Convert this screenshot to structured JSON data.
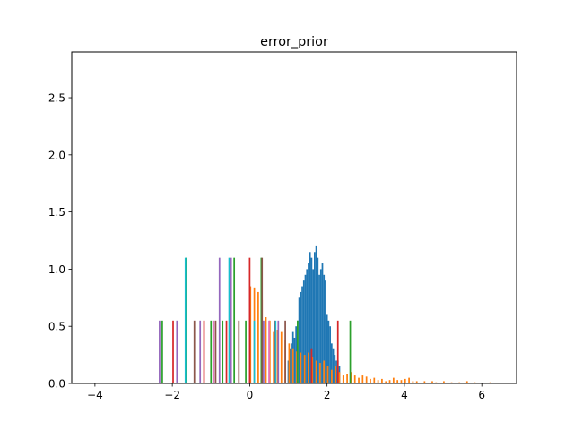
{
  "chart_data": {
    "type": "histogram",
    "title": "error_prior",
    "xlabel": "",
    "ylabel": "",
    "xlim": [
      -4.6,
      6.9
    ],
    "ylim": [
      0,
      2.9
    ],
    "xticks": [
      -4,
      -2,
      0,
      2,
      4,
      6
    ],
    "xtick_labels": [
      "−4",
      "−2",
      "0",
      "2",
      "4",
      "6"
    ],
    "yticks": [
      0.0,
      0.5,
      1.0,
      1.5,
      2.0,
      2.5
    ],
    "ytick_labels": [
      "0.0",
      "0.5",
      "1.0",
      "1.5",
      "2.0",
      "2.5"
    ],
    "grid": false,
    "legend": "none",
    "bar_width": 0.04,
    "series": [
      {
        "color": "#1f77b4",
        "bars": [
          {
            "x": 0.98,
            "h": 0.2
          },
          {
            "x": 1.02,
            "h": 0.3
          },
          {
            "x": 1.06,
            "h": 0.35
          },
          {
            "x": 1.1,
            "h": 0.45
          },
          {
            "x": 1.14,
            "h": 0.4
          },
          {
            "x": 1.18,
            "h": 0.5
          },
          {
            "x": 1.22,
            "h": 0.55
          },
          {
            "x": 1.26,
            "h": 0.75
          },
          {
            "x": 1.3,
            "h": 0.8
          },
          {
            "x": 1.34,
            "h": 0.85
          },
          {
            "x": 1.38,
            "h": 0.9
          },
          {
            "x": 1.42,
            "h": 0.95
          },
          {
            "x": 1.46,
            "h": 1.0
          },
          {
            "x": 1.5,
            "h": 1.05
          },
          {
            "x": 1.54,
            "h": 1.15
          },
          {
            "x": 1.58,
            "h": 1.1
          },
          {
            "x": 1.62,
            "h": 1.0
          },
          {
            "x": 1.66,
            "h": 1.15
          },
          {
            "x": 1.7,
            "h": 1.2
          },
          {
            "x": 1.74,
            "h": 1.1
          },
          {
            "x": 1.78,
            "h": 0.95
          },
          {
            "x": 1.82,
            "h": 1.0
          },
          {
            "x": 1.86,
            "h": 1.05
          },
          {
            "x": 1.9,
            "h": 0.95
          },
          {
            "x": 1.94,
            "h": 0.9
          },
          {
            "x": 1.98,
            "h": 0.6
          },
          {
            "x": 2.02,
            "h": 0.55
          },
          {
            "x": 2.06,
            "h": 0.5
          },
          {
            "x": 2.1,
            "h": 0.35
          },
          {
            "x": 2.14,
            "h": 0.3
          },
          {
            "x": 2.18,
            "h": 0.25
          },
          {
            "x": 2.22,
            "h": 0.2
          },
          {
            "x": 2.26,
            "h": 0.2
          },
          {
            "x": 2.3,
            "h": 0.15
          }
        ]
      },
      {
        "color": "#ff7f0e",
        "bars": [
          {
            "x": 0.0,
            "h": 0.85
          },
          {
            "x": 0.1,
            "h": 0.84
          },
          {
            "x": 0.2,
            "h": 0.8
          },
          {
            "x": 0.3,
            "h": 0.73
          },
          {
            "x": 0.4,
            "h": 0.58
          },
          {
            "x": 0.5,
            "h": 0.55
          },
          {
            "x": 0.6,
            "h": 0.45
          },
          {
            "x": 0.7,
            "h": 0.47
          },
          {
            "x": 0.8,
            "h": 0.45
          },
          {
            "x": 0.9,
            "h": 0.38
          },
          {
            "x": 1.0,
            "h": 0.35
          },
          {
            "x": 1.1,
            "h": 0.3
          },
          {
            "x": 1.2,
            "h": 0.28
          },
          {
            "x": 1.3,
            "h": 0.27
          },
          {
            "x": 1.4,
            "h": 0.25
          },
          {
            "x": 1.5,
            "h": 0.27
          },
          {
            "x": 1.6,
            "h": 0.23
          },
          {
            "x": 1.7,
            "h": 0.2
          },
          {
            "x": 1.8,
            "h": 0.18
          },
          {
            "x": 1.9,
            "h": 0.2
          },
          {
            "x": 2.0,
            "h": 0.15
          },
          {
            "x": 2.1,
            "h": 0.12
          },
          {
            "x": 2.2,
            "h": 0.15
          },
          {
            "x": 2.3,
            "h": 0.1
          },
          {
            "x": 2.4,
            "h": 0.07
          },
          {
            "x": 2.5,
            "h": 0.08
          },
          {
            "x": 2.6,
            "h": 0.1
          },
          {
            "x": 2.7,
            "h": 0.07
          },
          {
            "x": 2.8,
            "h": 0.05
          },
          {
            "x": 2.9,
            "h": 0.07
          },
          {
            "x": 3.0,
            "h": 0.06
          },
          {
            "x": 3.1,
            "h": 0.04
          },
          {
            "x": 3.2,
            "h": 0.05
          },
          {
            "x": 3.3,
            "h": 0.03
          },
          {
            "x": 3.4,
            "h": 0.04
          },
          {
            "x": 3.5,
            "h": 0.02
          },
          {
            "x": 3.6,
            "h": 0.03
          },
          {
            "x": 3.7,
            "h": 0.05
          },
          {
            "x": 3.8,
            "h": 0.03
          },
          {
            "x": 3.9,
            "h": 0.03
          },
          {
            "x": 4.0,
            "h": 0.04
          },
          {
            "x": 4.1,
            "h": 0.05
          },
          {
            "x": 4.2,
            "h": 0.02
          },
          {
            "x": 4.3,
            "h": 0.02
          },
          {
            "x": 4.5,
            "h": 0.02
          },
          {
            "x": 4.7,
            "h": 0.02
          },
          {
            "x": 4.8,
            "h": 0.01
          },
          {
            "x": 5.0,
            "h": 0.02
          },
          {
            "x": 5.2,
            "h": 0.01
          },
          {
            "x": 5.4,
            "h": 0.01
          },
          {
            "x": 5.6,
            "h": 0.02
          },
          {
            "x": 5.8,
            "h": 0.01
          },
          {
            "x": 6.2,
            "h": 0.01
          }
        ]
      },
      {
        "color": "#2ca02c",
        "bars": [
          {
            "x": -2.28,
            "h": 0.55
          },
          {
            "x": -1.66,
            "h": 1.1
          },
          {
            "x": -1.02,
            "h": 0.55
          },
          {
            "x": -0.72,
            "h": 0.55
          },
          {
            "x": -0.42,
            "h": 1.1
          },
          {
            "x": -0.12,
            "h": 0.55
          },
          {
            "x": 0.28,
            "h": 1.1
          },
          {
            "x": 1.22,
            "h": 0.55
          },
          {
            "x": 2.58,
            "h": 0.55
          }
        ]
      },
      {
        "color": "#d62728",
        "bars": [
          {
            "x": -2.0,
            "h": 0.55
          },
          {
            "x": -1.2,
            "h": 0.55
          },
          {
            "x": -0.62,
            "h": 0.55
          },
          {
            "x": -0.02,
            "h": 1.1
          },
          {
            "x": 0.62,
            "h": 0.55
          },
          {
            "x": 1.58,
            "h": 0.3
          },
          {
            "x": 2.26,
            "h": 0.55
          }
        ]
      },
      {
        "color": "#9467bd",
        "bars": [
          {
            "x": -2.35,
            "h": 0.55
          },
          {
            "x": -1.9,
            "h": 0.55
          },
          {
            "x": -1.3,
            "h": 0.55
          },
          {
            "x": -0.8,
            "h": 1.1
          },
          {
            "x": -0.5,
            "h": 1.1
          },
          {
            "x": 0.34,
            "h": 0.55
          },
          {
            "x": 0.72,
            "h": 0.55
          }
        ]
      },
      {
        "color": "#8c564b",
        "bars": [
          {
            "x": -1.45,
            "h": 0.55
          },
          {
            "x": -0.9,
            "h": 0.55
          },
          {
            "x": -0.3,
            "h": 0.55
          },
          {
            "x": 0.3,
            "h": 1.1
          },
          {
            "x": 0.9,
            "h": 0.55
          }
        ]
      },
      {
        "color": "#17becf",
        "bars": [
          {
            "x": -1.68,
            "h": 1.1
          },
          {
            "x": -0.55,
            "h": 1.1
          },
          {
            "x": 0.1,
            "h": 0.55
          },
          {
            "x": 0.65,
            "h": 0.55
          }
        ]
      },
      {
        "color": "#e377c2",
        "bars": [
          {
            "x": -0.95,
            "h": 0.55
          },
          {
            "x": 0.48,
            "h": 0.55
          }
        ]
      }
    ]
  }
}
